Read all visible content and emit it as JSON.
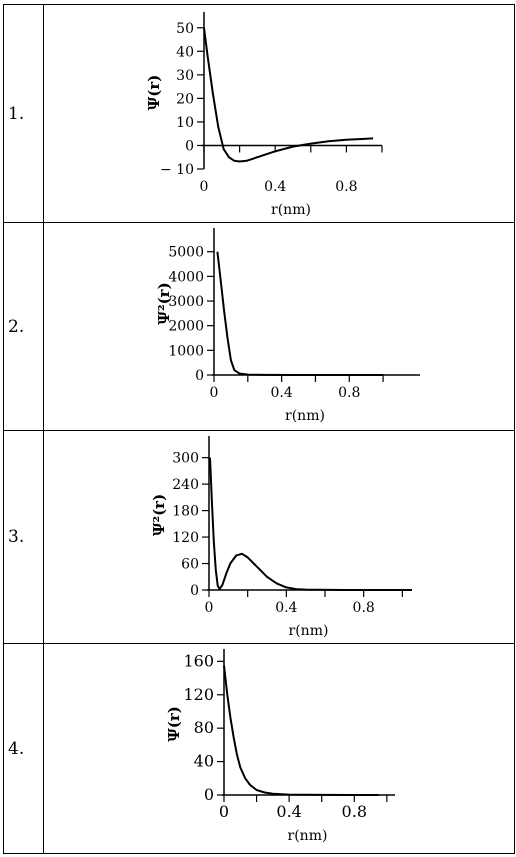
{
  "rows": [
    {
      "label": "1.",
      "chart_index": 0
    },
    {
      "label": "2.",
      "chart_index": 1
    },
    {
      "label": "3.",
      "chart_index": 2
    },
    {
      "label": "4.",
      "chart_index": 3
    }
  ],
  "chart_data": [
    {
      "type": "line",
      "title": "",
      "xlabel": "r(nm)",
      "ylabel": "Ψ(r)",
      "xlim": [
        0,
        1.0
      ],
      "ylim": [
        -10,
        55
      ],
      "xticks": [
        0,
        0.2,
        0.4,
        0.6,
        0.8,
        1.0
      ],
      "xtick_labels": [
        "0",
        "",
        "0.4",
        "",
        "0.8",
        ""
      ],
      "yticks": [
        -10,
        0,
        10,
        20,
        30,
        40,
        50
      ],
      "ytick_labels": [
        "− 10",
        "0",
        "10",
        "20",
        "30",
        "40",
        "50"
      ],
      "series": [
        {
          "x": [
            0,
            0.02,
            0.05,
            0.08,
            0.11,
            0.14,
            0.17,
            0.2,
            0.24,
            0.3,
            0.4,
            0.5,
            0.6,
            0.7,
            0.8,
            0.9,
            0.95
          ],
          "y": [
            50,
            38,
            22,
            8,
            -1.5,
            -5,
            -6.5,
            -6.8,
            -6.5,
            -5,
            -2.5,
            -0.5,
            0.8,
            1.8,
            2.4,
            2.8,
            3
          ]
        }
      ]
    },
    {
      "type": "line",
      "title": "",
      "xlabel": "r(nm)",
      "ylabel": "Ψ²(r)",
      "xlim": [
        0,
        1.1
      ],
      "ylim": [
        0,
        5800
      ],
      "xticks": [
        0,
        0.2,
        0.4,
        0.6,
        0.8,
        1.0
      ],
      "xtick_labels": [
        "0",
        "",
        "0.4",
        "",
        "0.8",
        ""
      ],
      "yticks": [
        0,
        1000,
        2000,
        3000,
        4000,
        5000
      ],
      "ytick_labels": [
        "0",
        "1000",
        "2000",
        "3000",
        "4000",
        "5000"
      ],
      "series": [
        {
          "x": [
            0.02,
            0.04,
            0.06,
            0.08,
            0.1,
            0.12,
            0.15,
            0.2,
            0.3,
            0.5,
            0.7,
            1.0
          ],
          "y": [
            5000,
            3800,
            2600,
            1500,
            600,
            200,
            60,
            15,
            5,
            1,
            0,
            0
          ]
        }
      ]
    },
    {
      "type": "line",
      "title": "",
      "xlabel": "r(nm)",
      "ylabel": "Ψ²(r)",
      "xlim": [
        0,
        1.05
      ],
      "ylim": [
        0,
        340
      ],
      "xticks": [
        0,
        0.2,
        0.4,
        0.6,
        0.8,
        1.0
      ],
      "xtick_labels": [
        "0",
        "",
        "0.4",
        "",
        "0.8",
        ""
      ],
      "yticks": [
        0,
        60,
        120,
        180,
        240,
        300
      ],
      "ytick_labels": [
        "0",
        "60",
        "120",
        "180",
        "240",
        "300"
      ],
      "series": [
        {
          "x": [
            0.005,
            0.015,
            0.025,
            0.035,
            0.045,
            0.055,
            0.07,
            0.09,
            0.11,
            0.14,
            0.17,
            0.2,
            0.25,
            0.3,
            0.35,
            0.4,
            0.45,
            0.5,
            0.7,
            1.05
          ],
          "y": [
            300,
            200,
            110,
            45,
            10,
            2,
            12,
            38,
            60,
            78,
            82,
            74,
            52,
            30,
            15,
            6,
            2,
            1,
            0,
            0
          ]
        }
      ]
    },
    {
      "type": "line",
      "title": "",
      "xlabel": "r(nm)",
      "ylabel": "Ψ(r)",
      "xlim": [
        0,
        1.05
      ],
      "ylim": [
        0,
        170
      ],
      "xticks": [
        0,
        0.2,
        0.4,
        0.6,
        0.8,
        1.0
      ],
      "xtick_labels": [
        "0",
        "",
        "0.4",
        "",
        "0.8",
        ""
      ],
      "yticks": [
        0,
        40,
        80,
        120,
        160
      ],
      "ytick_labels": [
        "0",
        "40",
        "80",
        "120",
        "160"
      ],
      "series": [
        {
          "x": [
            0,
            0.02,
            0.04,
            0.06,
            0.08,
            0.1,
            0.13,
            0.16,
            0.2,
            0.25,
            0.3,
            0.4,
            0.6,
            0.8,
            0.95
          ],
          "y": [
            155,
            120,
            92,
            68,
            48,
            33,
            20,
            12,
            6,
            3,
            1.5,
            0.5,
            0.1,
            0,
            0
          ]
        }
      ]
    }
  ]
}
